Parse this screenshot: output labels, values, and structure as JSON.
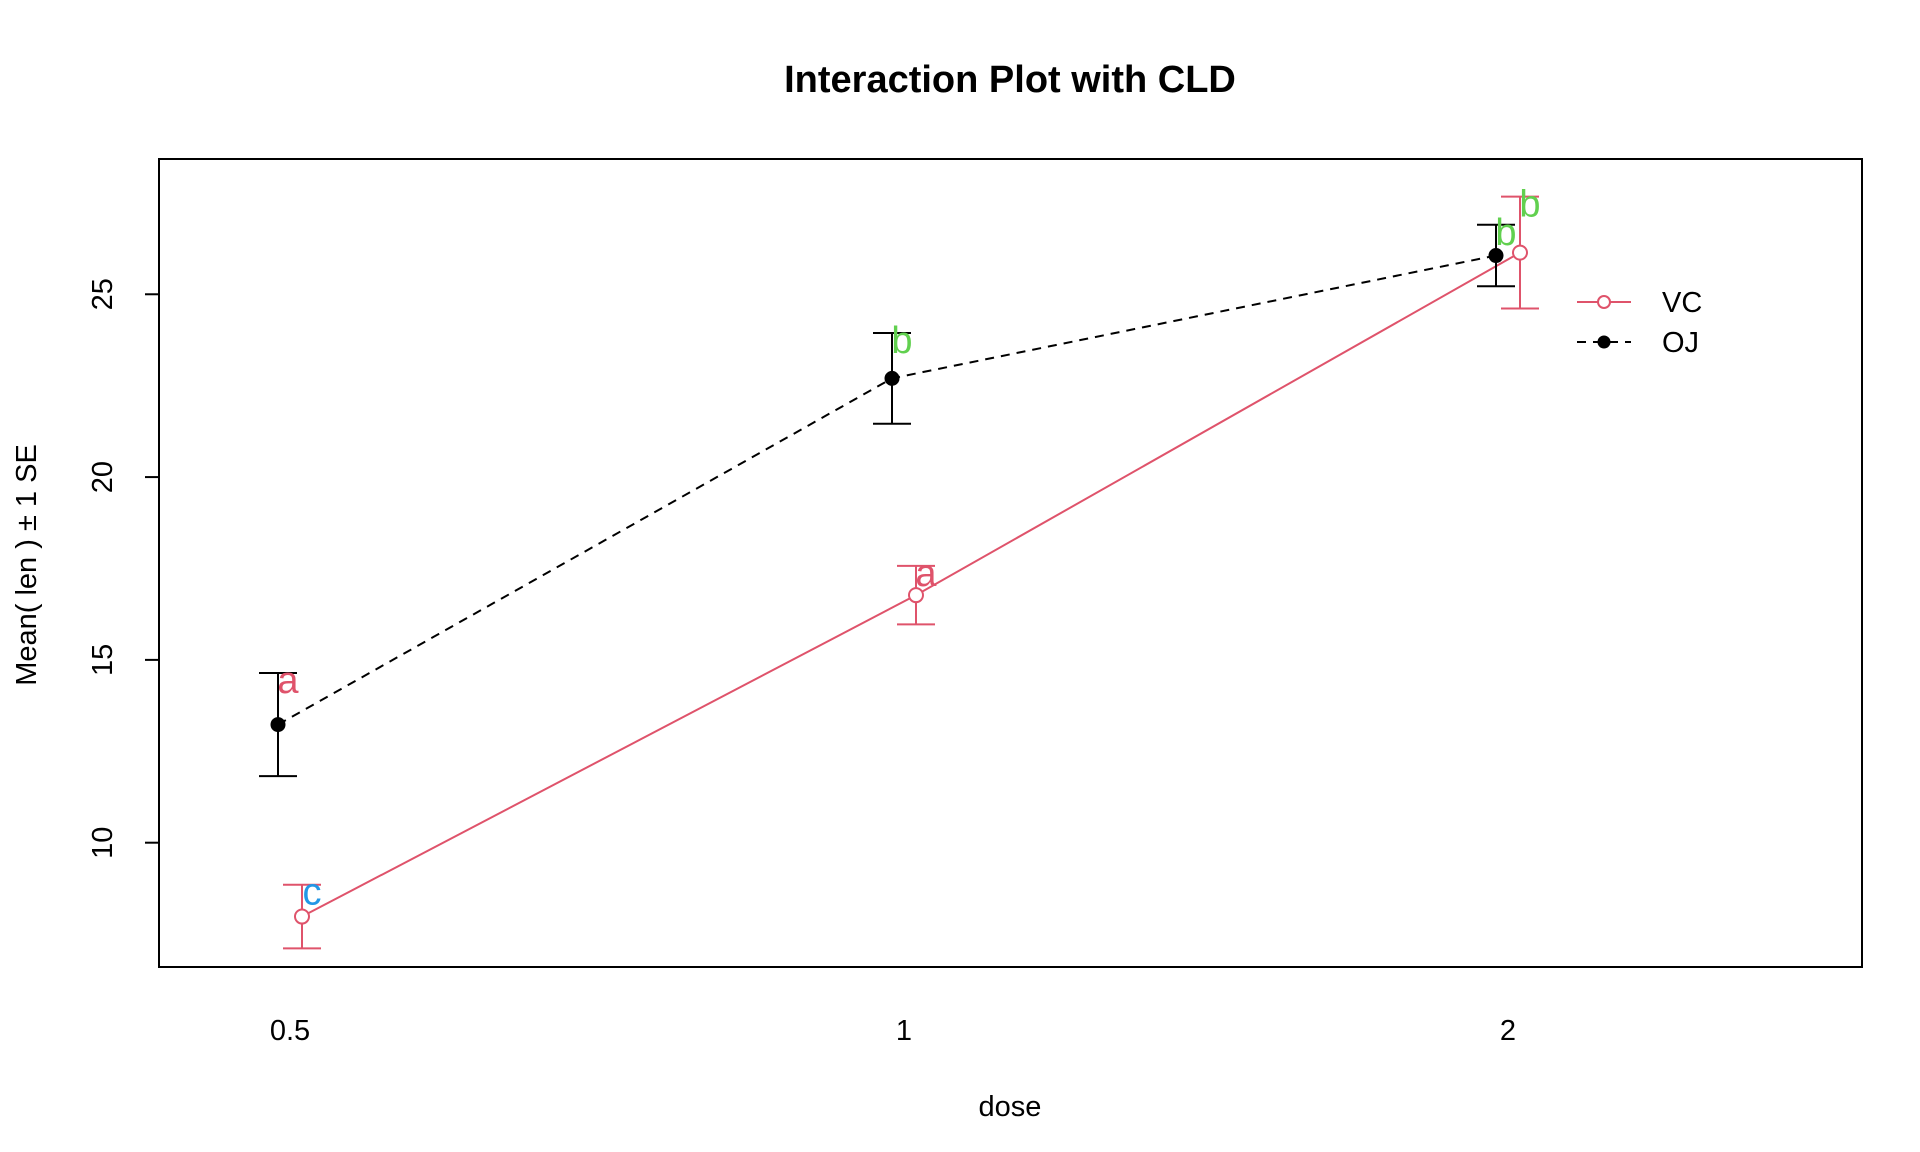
{
  "chart_data": {
    "type": "line",
    "title": "Interaction Plot with CLD",
    "xlabel": "dose",
    "ylabel": "Mean( len ) ± 1 SE",
    "categories": [
      "0.5",
      "1",
      "2"
    ],
    "yticks": [
      10,
      15,
      20,
      25
    ],
    "ylim": [
      6.6,
      28.7
    ],
    "grid": false,
    "legend_position": "top-right",
    "series": [
      {
        "name": "VC",
        "color": "#DF536B",
        "line": "solid",
        "marker": "open-circle",
        "values": [
          7.98,
          16.77,
          26.14
        ],
        "se": [
          0.87,
          0.8,
          1.53
        ],
        "cld": [
          "c",
          "a",
          "b"
        ],
        "cld_colors": [
          "#2297E6",
          "#DF536B",
          "#61D04F"
        ]
      },
      {
        "name": "OJ",
        "color": "#000000",
        "line": "dashed",
        "marker": "filled-circle",
        "values": [
          13.23,
          22.7,
          26.06
        ],
        "se": [
          1.41,
          1.24,
          0.84
        ],
        "cld": [
          "a",
          "b",
          "b"
        ],
        "cld_colors": [
          "#DF536B",
          "#61D04F",
          "#61D04F"
        ]
      }
    ]
  }
}
